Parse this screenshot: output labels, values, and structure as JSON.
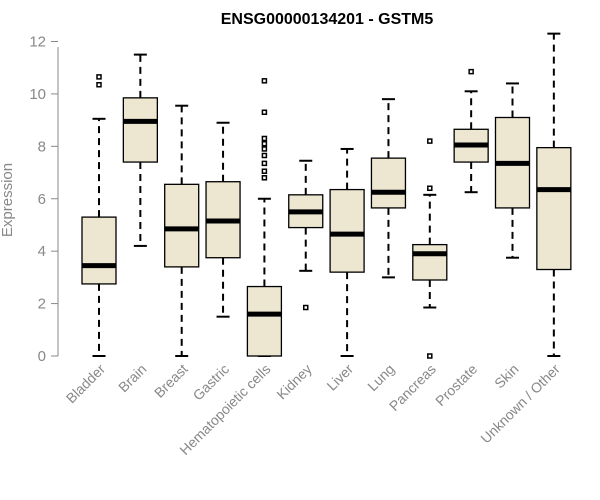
{
  "chart_data": {
    "type": "boxplot",
    "title": "ENSG00000134201 - GSTM5",
    "xlabel": "",
    "ylabel": "Expression",
    "ylim": [
      0,
      12
    ],
    "yticks": [
      0,
      2,
      4,
      6,
      8,
      10,
      12
    ],
    "grid": false,
    "box_color": "#ede6d0",
    "categories": [
      "Bladder",
      "Brain",
      "Breast",
      "Gastric",
      "Hematopoietic cells",
      "Kidney",
      "Liver",
      "Lung",
      "Pancreas",
      "Prostate",
      "Skin",
      "Unknown / Other"
    ],
    "boxes": [
      {
        "min": 0.0,
        "q1": 2.75,
        "median": 3.45,
        "q3": 5.3,
        "max": 9.05,
        "outliers": [
          10.35,
          10.65
        ]
      },
      {
        "min": 4.2,
        "q1": 7.4,
        "median": 8.95,
        "q3": 9.85,
        "max": 11.5,
        "outliers": []
      },
      {
        "min": 0.0,
        "q1": 3.4,
        "median": 4.85,
        "q3": 6.55,
        "max": 9.55,
        "outliers": []
      },
      {
        "min": 1.5,
        "q1": 3.75,
        "median": 5.15,
        "q3": 6.65,
        "max": 8.9,
        "outliers": []
      },
      {
        "min": 0.0,
        "q1": 0.0,
        "median": 1.6,
        "q3": 2.65,
        "max": 6.0,
        "outliers": [
          6.8,
          7.05,
          7.35,
          7.65,
          7.9,
          8.1,
          8.3,
          9.3,
          10.5
        ]
      },
      {
        "min": 3.25,
        "q1": 4.9,
        "median": 5.5,
        "q3": 6.15,
        "max": 7.45,
        "outliers": [
          1.85
        ]
      },
      {
        "min": 0.0,
        "q1": 3.2,
        "median": 4.65,
        "q3": 6.35,
        "max": 7.9,
        "outliers": []
      },
      {
        "min": 3.0,
        "q1": 5.65,
        "median": 6.25,
        "q3": 7.55,
        "max": 9.8,
        "outliers": []
      },
      {
        "min": 1.85,
        "q1": 2.9,
        "median": 3.9,
        "q3": 4.25,
        "max": 6.15,
        "outliers": [
          0.0,
          6.4,
          8.2
        ]
      },
      {
        "min": 6.25,
        "q1": 7.4,
        "median": 8.05,
        "q3": 8.65,
        "max": 10.1,
        "outliers": [
          10.85
        ]
      },
      {
        "min": 3.75,
        "q1": 5.65,
        "median": 7.35,
        "q3": 9.1,
        "max": 10.4,
        "outliers": []
      },
      {
        "min": 0.0,
        "q1": 3.3,
        "median": 6.35,
        "q3": 7.95,
        "max": 12.3,
        "outliers": []
      }
    ]
  }
}
